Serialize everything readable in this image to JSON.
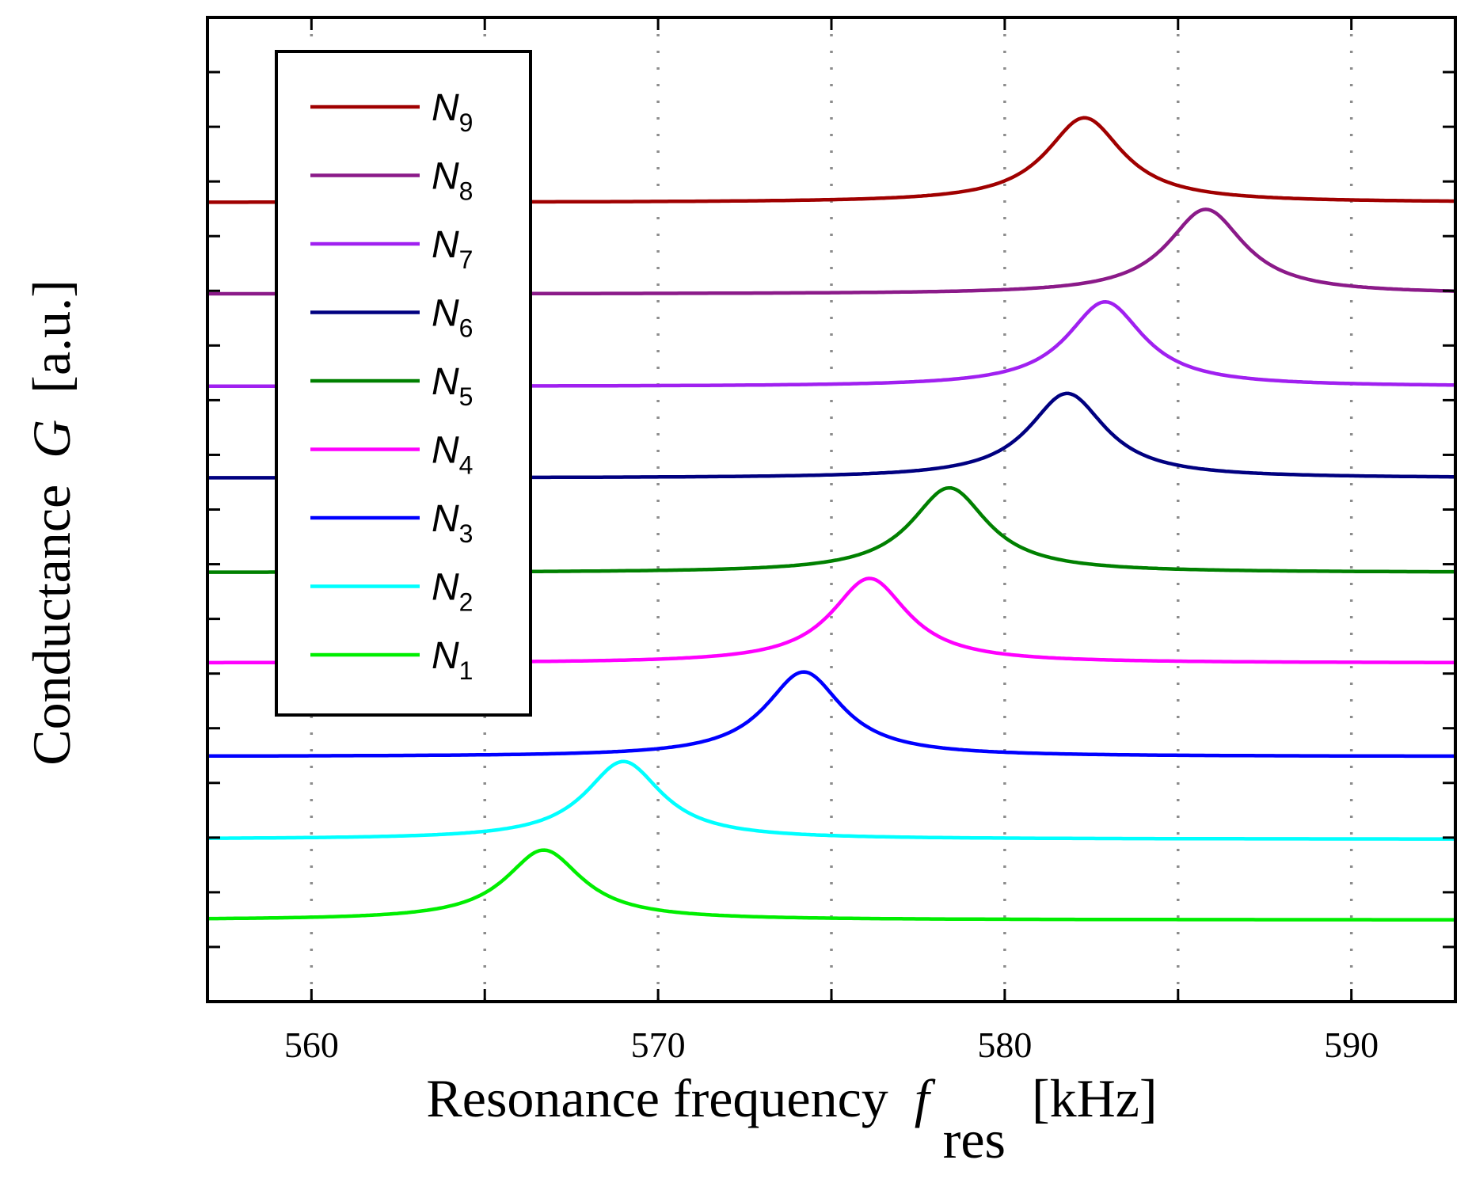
{
  "chart_data": {
    "type": "line",
    "title": "",
    "xlabel": "Resonance frequency",
    "xlabel_symbol": "f",
    "xlabel_subscript": "res",
    "xlabel_unit": "[kHz]",
    "ylabel": "Conductance",
    "ylabel_symbol": "G",
    "ylabel_unit": "[a.u.]",
    "xlim": [
      557,
      593
    ],
    "ylim": [
      0,
      100
    ],
    "xticks": [
      560,
      570,
      580,
      590
    ],
    "xtick_labels": [
      "560",
      "570",
      "580",
      "590"
    ],
    "minor_xticks": [
      565,
      575,
      585
    ],
    "ytick_count": 18,
    "grid": "vertical dotted",
    "legend_position": "top-left",
    "series": [
      {
        "name": "N",
        "sub": "9",
        "color": "#a00000",
        "baseline": 81.2,
        "peak_height": 8.6,
        "center": 582.3,
        "width": 2.7
      },
      {
        "name": "N",
        "sub": "8",
        "color": "#8b1a89",
        "baseline": 71.9,
        "peak_height": 8.6,
        "center": 585.8,
        "width": 2.7
      },
      {
        "name": "N",
        "sub": "7",
        "color": "#a020f0",
        "baseline": 62.5,
        "peak_height": 8.6,
        "center": 582.9,
        "width": 2.7
      },
      {
        "name": "N",
        "sub": "6",
        "color": "#000080",
        "baseline": 53.2,
        "peak_height": 8.6,
        "center": 581.8,
        "width": 2.7
      },
      {
        "name": "N",
        "sub": "5",
        "color": "#008000",
        "baseline": 43.6,
        "peak_height": 8.6,
        "center": 578.4,
        "width": 2.7
      },
      {
        "name": "N",
        "sub": "4",
        "color": "#ff00ff",
        "baseline": 34.4,
        "peak_height": 8.6,
        "center": 576.1,
        "width": 2.7
      },
      {
        "name": "N",
        "sub": "3",
        "color": "#0000ff",
        "baseline": 24.9,
        "peak_height": 8.6,
        "center": 574.2,
        "width": 2.7
      },
      {
        "name": "N",
        "sub": "2",
        "color": "#00ffff",
        "baseline": 16.5,
        "peak_height": 7.9,
        "center": 569.0,
        "width": 2.7
      },
      {
        "name": "N",
        "sub": "1",
        "color": "#00ee00",
        "baseline": 8.3,
        "peak_height": 7.1,
        "center": 566.7,
        "width": 2.7
      }
    ]
  }
}
